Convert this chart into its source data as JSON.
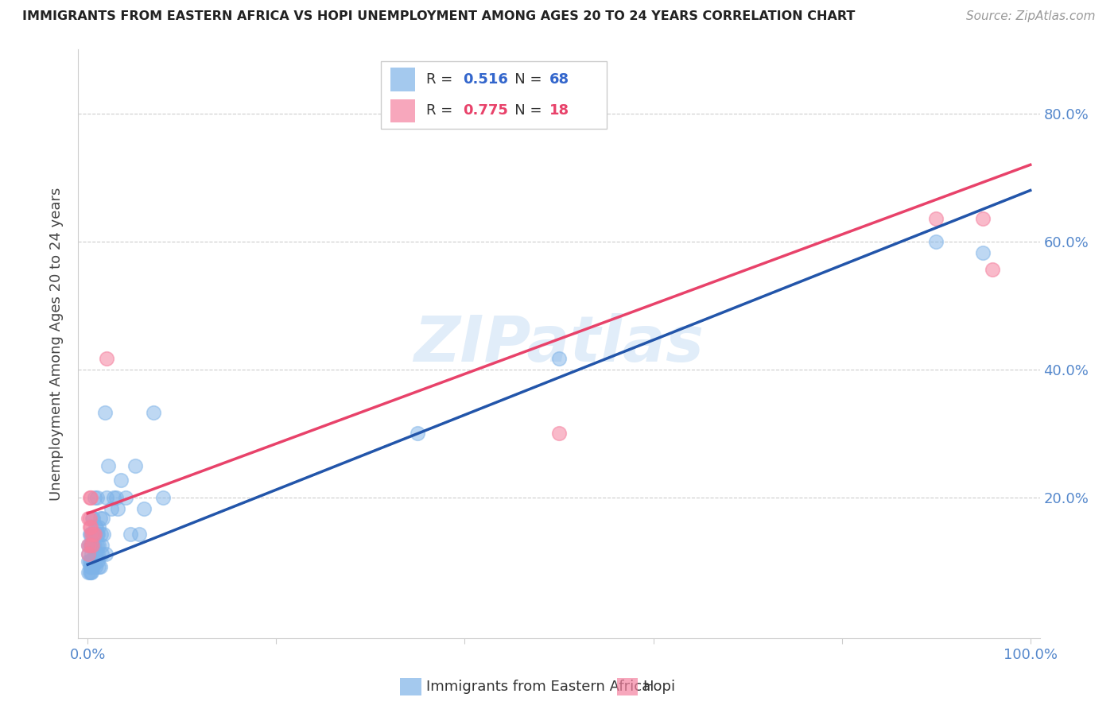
{
  "title": "IMMIGRANTS FROM EASTERN AFRICA VS HOPI UNEMPLOYMENT AMONG AGES 20 TO 24 YEARS CORRELATION CHART",
  "source": "Source: ZipAtlas.com",
  "ylabel": "Unemployment Among Ages 20 to 24 years",
  "watermark": "ZIPatlas",
  "legend_blue_R": "0.516",
  "legend_blue_N": "68",
  "legend_pink_R": "0.775",
  "legend_pink_N": "18",
  "blue_color": "#7EB3E8",
  "pink_color": "#F582A0",
  "blue_line_color": "#2255AA",
  "pink_line_color": "#E8426A",
  "dash_color": "#AAAAAA",
  "blue_scatter": [
    [
      0.001,
      0.111
    ],
    [
      0.002,
      0.083
    ],
    [
      0.003,
      0.143
    ],
    [
      0.004,
      0.125
    ],
    [
      0.005,
      0.091
    ],
    [
      0.006,
      0.167
    ],
    [
      0.007,
      0.2
    ],
    [
      0.008,
      0.143
    ],
    [
      0.009,
      0.111
    ],
    [
      0.01,
      0.125
    ],
    [
      0.011,
      0.1
    ],
    [
      0.012,
      0.154
    ],
    [
      0.013,
      0.091
    ],
    [
      0.014,
      0.143
    ],
    [
      0.015,
      0.111
    ],
    [
      0.016,
      0.167
    ],
    [
      0.002,
      0.1
    ],
    [
      0.003,
      0.125
    ],
    [
      0.004,
      0.111
    ],
    [
      0.005,
      0.143
    ],
    [
      0.006,
      0.091
    ],
    [
      0.007,
      0.125
    ],
    [
      0.008,
      0.154
    ],
    [
      0.009,
      0.1
    ],
    [
      0.01,
      0.143
    ],
    [
      0.011,
      0.111
    ],
    [
      0.012,
      0.091
    ],
    [
      0.013,
      0.167
    ],
    [
      0.001,
      0.125
    ],
    [
      0.002,
      0.143
    ],
    [
      0.003,
      0.1
    ],
    [
      0.004,
      0.083
    ],
    [
      0.005,
      0.167
    ],
    [
      0.006,
      0.125
    ],
    [
      0.007,
      0.111
    ],
    [
      0.008,
      0.091
    ],
    [
      0.009,
      0.154
    ],
    [
      0.01,
      0.2
    ],
    [
      0.011,
      0.143
    ],
    [
      0.012,
      0.125
    ],
    [
      0.02,
      0.2
    ],
    [
      0.025,
      0.182
    ],
    [
      0.03,
      0.2
    ],
    [
      0.035,
      0.227
    ],
    [
      0.04,
      0.2
    ],
    [
      0.022,
      0.25
    ],
    [
      0.028,
      0.2
    ],
    [
      0.032,
      0.182
    ],
    [
      0.05,
      0.25
    ],
    [
      0.06,
      0.182
    ],
    [
      0.07,
      0.333
    ],
    [
      0.08,
      0.2
    ],
    [
      0.018,
      0.333
    ],
    [
      0.015,
      0.125
    ],
    [
      0.017,
      0.143
    ],
    [
      0.019,
      0.111
    ],
    [
      0.045,
      0.143
    ],
    [
      0.055,
      0.143
    ],
    [
      0.001,
      0.083
    ],
    [
      0.002,
      0.091
    ],
    [
      0.003,
      0.083
    ],
    [
      0.001,
      0.1
    ],
    [
      0.002,
      0.125
    ],
    [
      0.003,
      0.091
    ],
    [
      0.35,
      0.3
    ],
    [
      0.5,
      0.417
    ],
    [
      0.9,
      0.6
    ],
    [
      0.95,
      0.583
    ]
  ],
  "pink_scatter": [
    [
      0.001,
      0.167
    ],
    [
      0.002,
      0.2
    ],
    [
      0.003,
      0.2
    ],
    [
      0.004,
      0.143
    ],
    [
      0.005,
      0.125
    ],
    [
      0.006,
      0.143
    ],
    [
      0.002,
      0.167
    ],
    [
      0.001,
      0.125
    ],
    [
      0.001,
      0.111
    ],
    [
      0.002,
      0.154
    ],
    [
      0.003,
      0.125
    ],
    [
      0.003,
      0.154
    ],
    [
      0.02,
      0.417
    ],
    [
      0.007,
      0.143
    ],
    [
      0.5,
      0.3
    ],
    [
      0.9,
      0.636
    ],
    [
      0.95,
      0.636
    ],
    [
      0.96,
      0.556
    ]
  ],
  "blue_line_x": [
    0.0,
    1.0
  ],
  "blue_line_y": [
    0.095,
    0.68
  ],
  "pink_line_x": [
    0.0,
    1.0
  ],
  "pink_line_y": [
    0.175,
    0.72
  ],
  "dash_line_x": [
    0.0,
    1.0
  ],
  "dash_line_y": [
    0.095,
    0.68
  ],
  "xlim": [
    -0.01,
    1.01
  ],
  "ylim": [
    -0.02,
    0.9
  ],
  "background_color": "#ffffff",
  "grid_color": "#CCCCCC",
  "tick_color": "#5588CC",
  "title_color": "#222222",
  "source_color": "#999999"
}
